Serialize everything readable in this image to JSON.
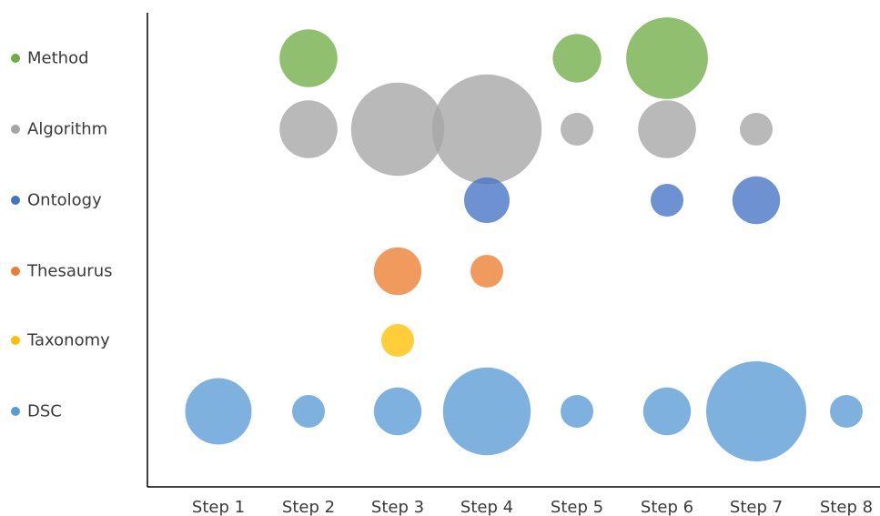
{
  "chart_data": {
    "type": "scatter",
    "subtype": "bubble-matrix",
    "title": "",
    "xlabel": "",
    "ylabel": "",
    "legend": "none",
    "grid": false,
    "x_categories": [
      "Step 1",
      "Step 2",
      "Step 3",
      "Step 4",
      "Step 5",
      "Step 6",
      "Step 7",
      "Step 8"
    ],
    "y_categories": [
      "Method",
      "Algorithm",
      "Ontology",
      "Thesaurus",
      "Taxonomy",
      "DSC"
    ],
    "series": [
      {
        "name": "Method",
        "color": "#70ad47",
        "points": [
          {
            "x": "Step 2",
            "size": 5.0
          },
          {
            "x": "Step 5",
            "size": 3.5
          },
          {
            "x": "Step 6",
            "size": 10.0
          }
        ]
      },
      {
        "name": "Algorithm",
        "color": "#a5a5a5",
        "points": [
          {
            "x": "Step 2",
            "size": 5.0
          },
          {
            "x": "Step 3",
            "size": 13.0
          },
          {
            "x": "Step 4",
            "size": 18.0
          },
          {
            "x": "Step 5",
            "size": 1.6
          },
          {
            "x": "Step 6",
            "size": 5.0
          },
          {
            "x": "Step 7",
            "size": 1.6
          }
        ]
      },
      {
        "name": "Ontology",
        "color": "#4472c4",
        "points": [
          {
            "x": "Step 4",
            "size": 3.1
          },
          {
            "x": "Step 6",
            "size": 1.6
          },
          {
            "x": "Step 7",
            "size": 3.4
          }
        ]
      },
      {
        "name": "Thesaurus",
        "color": "#ed7d31",
        "points": [
          {
            "x": "Step 3",
            "size": 3.4
          },
          {
            "x": "Step 4",
            "size": 1.6
          }
        ]
      },
      {
        "name": "Taxonomy",
        "color": "#ffc000",
        "points": [
          {
            "x": "Step 3",
            "size": 1.6
          }
        ]
      },
      {
        "name": "DSC",
        "color": "#5b9bd5",
        "points": [
          {
            "x": "Step 1",
            "size": 6.6
          },
          {
            "x": "Step 2",
            "size": 1.6
          },
          {
            "x": "Step 3",
            "size": 3.4
          },
          {
            "x": "Step 4",
            "size": 11.5
          },
          {
            "x": "Step 5",
            "size": 1.6
          },
          {
            "x": "Step 6",
            "size": 3.4
          },
          {
            "x": "Step 7",
            "size": 15.0
          },
          {
            "x": "Step 8",
            "size": 1.6
          }
        ]
      }
    ]
  }
}
